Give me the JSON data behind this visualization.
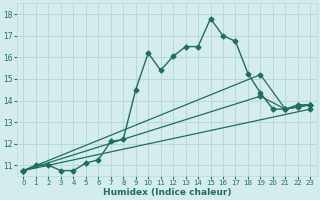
{
  "title": "",
  "xlabel": "Humidex (Indice chaleur)",
  "ylabel": "",
  "bg_color": "#d4ecee",
  "grid_color": "#b8d8da",
  "line_color": "#1e6e60",
  "xlim": [
    -0.5,
    23.5
  ],
  "ylim": [
    10.5,
    18.5
  ],
  "xticks": [
    0,
    1,
    2,
    3,
    4,
    5,
    6,
    7,
    8,
    9,
    10,
    11,
    12,
    13,
    14,
    15,
    16,
    17,
    18,
    19,
    20,
    21,
    22,
    23
  ],
  "yticks": [
    11,
    12,
    13,
    14,
    15,
    16,
    17,
    18
  ],
  "series_main": {
    "x": [
      0,
      1,
      2,
      3,
      4,
      5,
      6,
      7,
      8,
      9,
      10,
      11,
      12,
      13,
      14,
      15,
      16,
      17,
      18,
      19,
      20,
      21,
      22,
      23
    ],
    "y": [
      10.75,
      11.0,
      11.0,
      10.75,
      10.75,
      11.1,
      11.25,
      12.1,
      12.2,
      14.5,
      16.2,
      15.4,
      16.05,
      16.5,
      16.5,
      17.8,
      17.0,
      16.75,
      15.25,
      14.35,
      13.6,
      13.6,
      13.8,
      13.8
    ],
    "marker": "D",
    "markersize": 2.5,
    "linewidth": 1.0
  },
  "series_lines": [
    {
      "x": [
        0,
        23
      ],
      "y": [
        10.75,
        13.6
      ],
      "marker": "D",
      "markersize": 2.5,
      "linewidth": 0.9
    },
    {
      "x": [
        0,
        19,
        21,
        22,
        23
      ],
      "y": [
        10.75,
        14.2,
        13.6,
        13.7,
        13.8
      ],
      "marker": "D",
      "markersize": 2.5,
      "linewidth": 0.9
    },
    {
      "x": [
        0,
        19,
        21,
        22,
        23
      ],
      "y": [
        10.75,
        15.2,
        13.6,
        13.7,
        13.8
      ],
      "marker": "D",
      "markersize": 2.5,
      "linewidth": 0.9
    }
  ]
}
